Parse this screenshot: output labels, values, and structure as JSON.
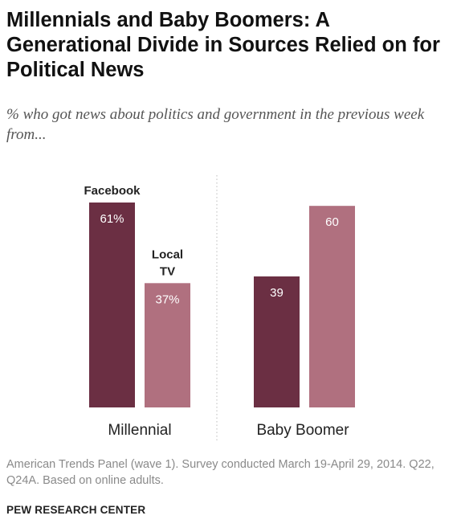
{
  "chart_data": {
    "type": "bar",
    "title": "Millennials and Baby Boomers: A Generational Divide in Sources Relied on for Political News",
    "subtitle": "% who got news about politics and government in the previous week from...",
    "categories": [
      "Millennial",
      "Baby Boomer"
    ],
    "series": [
      {
        "name": "Facebook",
        "values": [
          61,
          39
        ],
        "value_labels": [
          "61%",
          "39"
        ],
        "color": "#6b2f43"
      },
      {
        "name": "Local TV",
        "values": [
          37,
          60
        ],
        "value_labels": [
          "37%",
          "60"
        ],
        "color": "#b0707f"
      }
    ],
    "series_label_lines": [
      [
        "Facebook"
      ],
      [
        "Local",
        "TV"
      ]
    ],
    "ylim": [
      0,
      61
    ],
    "xlabel": "",
    "ylabel": "",
    "grid": false,
    "legend": "inline labels above Millennial bars",
    "divider": "dotted vertical line between groups"
  },
  "note": "American Trends Panel (wave 1). Survey conducted March 19-April 29, 2014. Q22, Q24A. Based on online adults.",
  "source": "PEW RESEARCH CENTER",
  "colors": {
    "facebook": "#6b2f43",
    "local_tv": "#b0707f",
    "bar_label_text": "#ffffff",
    "divider": "#bdbdbd"
  }
}
